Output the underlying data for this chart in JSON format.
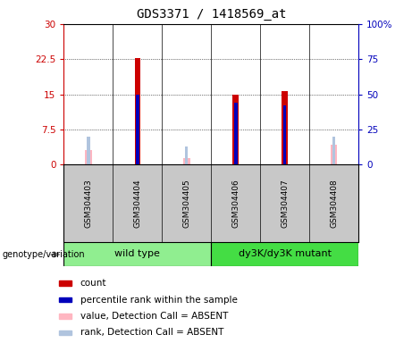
{
  "title": "GDS3371 / 1418569_at",
  "samples": [
    "GSM304403",
    "GSM304404",
    "GSM304405",
    "GSM304406",
    "GSM304407",
    "GSM304408"
  ],
  "count_values": [
    0,
    22.7,
    0,
    15.0,
    15.7,
    0
  ],
  "rank_pct_values": [
    0,
    50,
    0,
    44,
    42,
    0
  ],
  "absent_value_values": [
    3.2,
    0,
    1.3,
    0,
    0,
    4.2
  ],
  "absent_rank_pct_values": [
    20,
    0,
    13,
    0,
    0,
    20
  ],
  "ylim_left": [
    0,
    30
  ],
  "ylim_right": [
    0,
    100
  ],
  "yticks_left": [
    0,
    7.5,
    15,
    22.5,
    30
  ],
  "ytick_labels_left": [
    "0",
    "7.5",
    "15",
    "22.5",
    "30"
  ],
  "yticks_right": [
    0,
    25,
    50,
    75,
    100
  ],
  "ytick_labels_right": [
    "0",
    "25",
    "50",
    "75",
    "100%"
  ],
  "count_color": "#CC0000",
  "rank_color": "#0000BB",
  "absent_value_color": "#FFB6C1",
  "absent_rank_color": "#B0C4DE",
  "bg_color": "#C8C8C8",
  "wt_color": "#90EE90",
  "mut_color": "#44DD44",
  "legend_items": [
    {
      "label": "count",
      "color": "#CC0000"
    },
    {
      "label": "percentile rank within the sample",
      "color": "#0000BB"
    },
    {
      "label": "value, Detection Call = ABSENT",
      "color": "#FFB6C1"
    },
    {
      "label": "rank, Detection Call = ABSENT",
      "color": "#B0C4DE"
    }
  ]
}
